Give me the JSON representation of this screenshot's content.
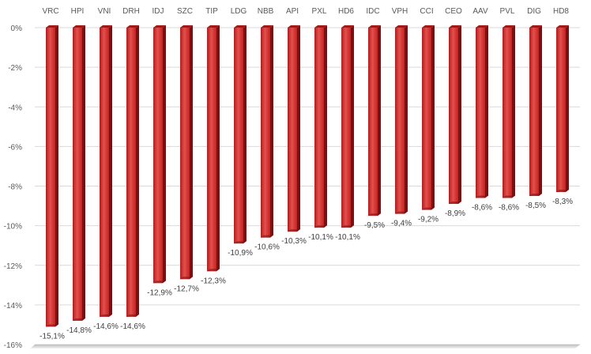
{
  "chart_data": {
    "type": "bar",
    "categories": [
      "VRC",
      "HPI",
      "VNI",
      "DRH",
      "IDJ",
      "SZC",
      "TIP",
      "LDG",
      "NBB",
      "API",
      "PXL",
      "HD6",
      "IDC",
      "VPH",
      "CCI",
      "CEO",
      "AAV",
      "PVL",
      "DIG",
      "HD8"
    ],
    "values": [
      -15.1,
      -14.8,
      -14.6,
      -14.6,
      -12.9,
      -12.7,
      -12.3,
      -10.9,
      -10.6,
      -10.3,
      -10.1,
      -10.1,
      -9.5,
      -9.4,
      -9.2,
      -8.9,
      -8.6,
      -8.6,
      -8.5,
      -8.3
    ],
    "data_labels": [
      "-15,1%",
      "-14,8%",
      "-14,6%",
      "-14,6%",
      "-12,9%",
      "-12,7%",
      "-12,3%",
      "-10,9%",
      "-10,6%",
      "-10,3%",
      "-10,1%",
      "-10,1%",
      "-9,5%",
      "-9,4%",
      "-9,2%",
      "-8,9%",
      "-8,6%",
      "-8,6%",
      "-8,5%",
      "-8,3%"
    ],
    "y_ticks": [
      0,
      -2,
      -4,
      -6,
      -8,
      -10,
      -12,
      -14,
      -16
    ],
    "y_tick_labels": [
      "0%",
      "-2%",
      "-4%",
      "-6%",
      "-8%",
      "-10%",
      "-12%",
      "-14%",
      "-16%"
    ],
    "ylim": [
      -16,
      0
    ],
    "grid": true,
    "category_axis_position": "top",
    "title": "",
    "xlabel": "",
    "ylabel": "",
    "colors": {
      "bar_front": "#c8201f",
      "bar_highlight": "#e2514d",
      "bar_side": "#7d0f10",
      "bar_top": "#a51818",
      "floor": "#d0d0d0"
    }
  }
}
